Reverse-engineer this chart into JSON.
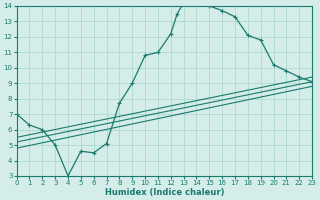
{
  "xlabel": "Humidex (Indice chaleur)",
  "xlim": [
    0,
    23
  ],
  "ylim": [
    3,
    14
  ],
  "xticks": [
    0,
    1,
    2,
    3,
    4,
    5,
    6,
    7,
    8,
    9,
    10,
    11,
    12,
    13,
    14,
    15,
    16,
    17,
    18,
    19,
    20,
    21,
    22,
    23
  ],
  "yticks": [
    3,
    4,
    5,
    6,
    7,
    8,
    9,
    10,
    11,
    12,
    13,
    14
  ],
  "bg_color": "#d4ede9",
  "line_color": "#1a7a6e",
  "grid_color": "#afd8d2",
  "curve_main_x": [
    0,
    1,
    2,
    3,
    4,
    5,
    6,
    7,
    8,
    9,
    10,
    11,
    12,
    12.5,
    13,
    13.5,
    14,
    14.5,
    15,
    16,
    17,
    18,
    19,
    20,
    21,
    22,
    23
  ],
  "curve_main_y": [
    7.0,
    6.3,
    6.0,
    5.0,
    3.0,
    4.6,
    4.5,
    5.1,
    7.7,
    9.0,
    10.8,
    11.0,
    12.2,
    13.5,
    14.2,
    14.4,
    14.3,
    14.2,
    14.0,
    13.7,
    13.3,
    12.1,
    11.8,
    10.2,
    9.8,
    9.4,
    9.1
  ],
  "line1_x": [
    0,
    23
  ],
  "line1_y": [
    5.5,
    9.4
  ],
  "line2_x": [
    0,
    23
  ],
  "line2_y": [
    5.2,
    9.1
  ],
  "line3_x": [
    0,
    23
  ],
  "line3_y": [
    4.8,
    8.8
  ]
}
